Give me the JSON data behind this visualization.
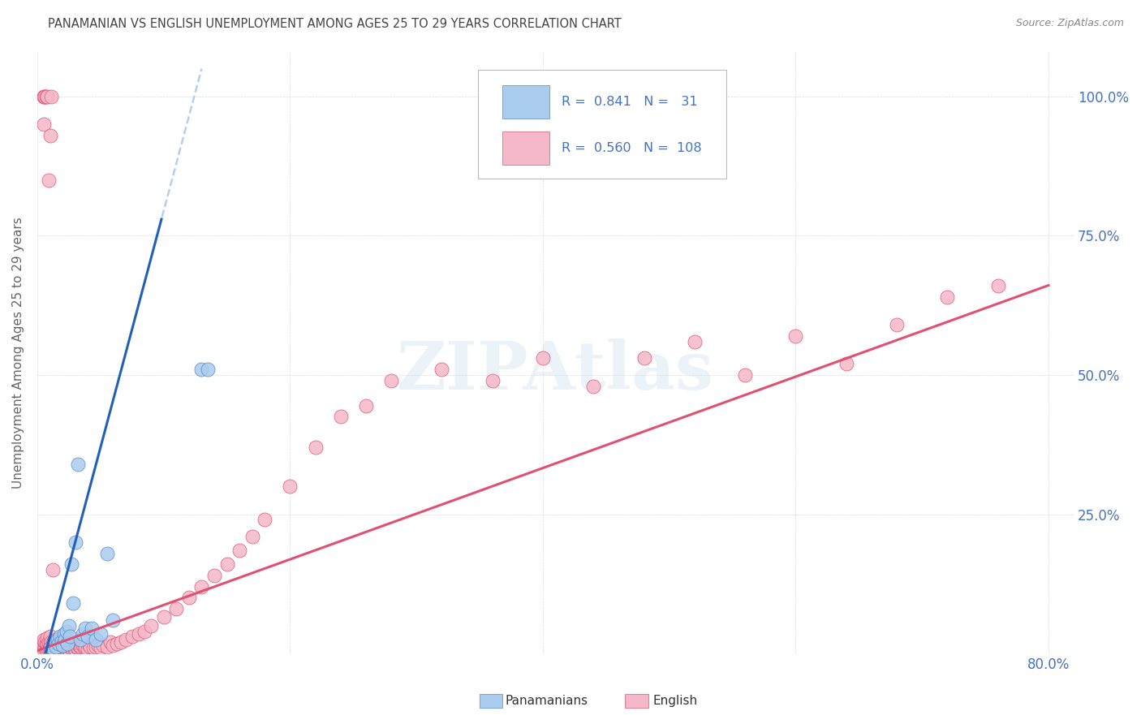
{
  "title": "PANAMANIAN VS ENGLISH UNEMPLOYMENT AMONG AGES 25 TO 29 YEARS CORRELATION CHART",
  "source": "Source: ZipAtlas.com",
  "ylabel": "Unemployment Among Ages 25 to 29 years",
  "xlim": [
    0.0,
    0.82
  ],
  "ylim": [
    0.0,
    1.08
  ],
  "xtick_positions": [
    0.0,
    0.2,
    0.4,
    0.6,
    0.8
  ],
  "xticklabels": [
    "0.0%",
    "",
    "",
    "",
    "80.0%"
  ],
  "ytick_positions": [
    0.0,
    0.25,
    0.5,
    0.75,
    1.0
  ],
  "yticklabels_right": [
    "",
    "25.0%",
    "50.0%",
    "75.0%",
    "100.0%"
  ],
  "title_color": "#444444",
  "source_color": "#888888",
  "axis_label_color": "#666666",
  "tick_label_color": "#4472C4",
  "blue_face_color": "#aaccee",
  "blue_edge_color": "#5588cc",
  "pink_face_color": "#f5b8c8",
  "pink_edge_color": "#e05575",
  "blue_line_color": "#2060b8",
  "pink_line_color": "#e05070",
  "legend_R_blue": "0.841",
  "legend_N_blue": "31",
  "legend_R_pink": "0.560",
  "legend_N_pink": "108",
  "watermark": "ZIPAtlas",
  "blue_scatter_x": [
    0.01,
    0.012,
    0.013,
    0.014,
    0.015,
    0.016,
    0.017,
    0.018,
    0.019,
    0.02,
    0.021,
    0.022,
    0.023,
    0.024,
    0.025,
    0.026,
    0.027,
    0.028,
    0.03,
    0.032,
    0.034,
    0.036,
    0.038,
    0.04,
    0.043,
    0.046,
    0.05,
    0.055,
    0.06,
    0.13,
    0.135
  ],
  "blue_scatter_y": [
    0.01,
    0.015,
    0.008,
    0.02,
    0.012,
    0.025,
    0.018,
    0.03,
    0.022,
    0.015,
    0.035,
    0.025,
    0.04,
    0.018,
    0.05,
    0.03,
    0.16,
    0.09,
    0.2,
    0.34,
    0.025,
    0.035,
    0.045,
    0.03,
    0.045,
    0.025,
    0.035,
    0.18,
    0.06,
    0.51,
    0.51
  ],
  "pink_scatter_x": [
    0.005,
    0.005,
    0.005,
    0.006,
    0.006,
    0.007,
    0.007,
    0.008,
    0.008,
    0.008,
    0.009,
    0.009,
    0.01,
    0.01,
    0.01,
    0.01,
    0.011,
    0.011,
    0.012,
    0.012,
    0.013,
    0.013,
    0.014,
    0.014,
    0.015,
    0.015,
    0.015,
    0.016,
    0.016,
    0.017,
    0.018,
    0.018,
    0.019,
    0.02,
    0.02,
    0.021,
    0.022,
    0.023,
    0.024,
    0.025,
    0.025,
    0.026,
    0.027,
    0.028,
    0.029,
    0.03,
    0.031,
    0.032,
    0.033,
    0.034,
    0.035,
    0.036,
    0.037,
    0.038,
    0.04,
    0.041,
    0.042,
    0.044,
    0.046,
    0.048,
    0.05,
    0.052,
    0.055,
    0.058,
    0.06,
    0.063,
    0.066,
    0.07,
    0.075,
    0.08,
    0.085,
    0.09,
    0.1,
    0.11,
    0.12,
    0.13,
    0.14,
    0.15,
    0.16,
    0.17,
    0.18,
    0.2,
    0.22,
    0.24,
    0.26,
    0.28,
    0.32,
    0.36,
    0.4,
    0.44,
    0.48,
    0.52,
    0.56,
    0.6,
    0.64,
    0.68,
    0.72,
    0.76,
    0.005,
    0.005,
    0.005,
    0.006,
    0.007,
    0.008,
    0.009,
    0.01,
    0.011,
    0.012
  ],
  "pink_scatter_y": [
    0.008,
    0.015,
    0.025,
    0.01,
    0.02,
    0.008,
    0.018,
    0.01,
    0.018,
    0.028,
    0.01,
    0.02,
    0.008,
    0.015,
    0.022,
    0.03,
    0.01,
    0.02,
    0.01,
    0.018,
    0.012,
    0.022,
    0.01,
    0.02,
    0.008,
    0.015,
    0.025,
    0.01,
    0.02,
    0.012,
    0.01,
    0.02,
    0.012,
    0.008,
    0.018,
    0.01,
    0.012,
    0.015,
    0.01,
    0.008,
    0.018,
    0.012,
    0.01,
    0.015,
    0.01,
    0.008,
    0.012,
    0.01,
    0.015,
    0.01,
    0.012,
    0.015,
    0.01,
    0.012,
    0.008,
    0.015,
    0.012,
    0.01,
    0.012,
    0.015,
    0.01,
    0.015,
    0.012,
    0.02,
    0.015,
    0.018,
    0.02,
    0.025,
    0.03,
    0.035,
    0.04,
    0.05,
    0.065,
    0.08,
    0.1,
    0.12,
    0.14,
    0.16,
    0.185,
    0.21,
    0.24,
    0.3,
    0.37,
    0.425,
    0.445,
    0.49,
    0.51,
    0.49,
    0.53,
    0.48,
    0.53,
    0.56,
    0.5,
    0.57,
    0.52,
    0.59,
    0.64,
    0.66,
    0.95,
    1.0,
    1.0,
    1.0,
    1.0,
    1.0,
    0.85,
    0.93,
    1.0,
    0.15
  ],
  "blue_trend_slope": 8.5,
  "blue_trend_intercept": -0.055,
  "pink_trend_slope": 0.82,
  "pink_trend_intercept": 0.005
}
